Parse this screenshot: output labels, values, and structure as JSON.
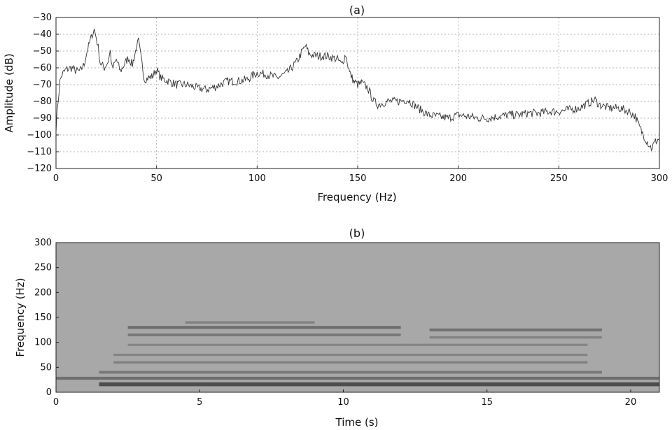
{
  "chart_data": [
    {
      "type": "line",
      "title": "(a)",
      "xlabel": "Frequency (Hz)",
      "ylabel": "Amplitude (dB)",
      "xlim": [
        0,
        300
      ],
      "ylim": [
        -120,
        -30
      ],
      "xticks": [
        0,
        50,
        100,
        150,
        200,
        250,
        300
      ],
      "yticks": [
        -30,
        -40,
        -50,
        -60,
        -70,
        -80,
        -90,
        -100,
        -110,
        -120
      ],
      "grid": true,
      "line_color": "#333333",
      "series": [
        {
          "x": [
            0,
            1,
            2,
            3,
            5,
            8,
            10,
            12,
            14,
            15,
            17,
            18,
            19,
            20,
            21,
            22,
            24,
            26,
            27,
            28,
            30,
            32,
            34,
            36,
            38,
            40,
            41,
            42,
            44,
            46,
            48,
            50,
            52,
            54,
            56,
            58,
            60,
            65,
            70,
            75,
            80,
            85,
            90,
            95,
            100,
            105,
            110,
            115,
            120,
            122,
            124,
            126,
            130,
            135,
            140,
            142,
            144,
            146,
            148,
            150,
            152,
            155,
            158,
            160,
            165,
            170,
            175,
            180,
            185,
            190,
            195,
            200,
            205,
            210,
            215,
            220,
            225,
            230,
            235,
            240,
            245,
            250,
            255,
            260,
            265,
            268,
            270,
            275,
            280,
            285,
            288,
            290,
            292,
            294,
            296,
            298,
            300
          ],
          "y": [
            -96,
            -80,
            -68,
            -64,
            -61,
            -60,
            -62,
            -62,
            -58,
            -52,
            -44,
            -40,
            -37,
            -42,
            -48,
            -57,
            -60,
            -56,
            -50,
            -61,
            -55,
            -62,
            -58,
            -54,
            -58,
            -48,
            -44,
            -52,
            -67,
            -66,
            -65,
            -61,
            -66,
            -67,
            -68,
            -69,
            -70,
            -70,
            -72,
            -73,
            -71,
            -68,
            -68,
            -67,
            -63,
            -64,
            -66,
            -63,
            -56,
            -51,
            -47,
            -52,
            -53,
            -53,
            -55,
            -58,
            -52,
            -63,
            -68,
            -70,
            -69,
            -72,
            -80,
            -82,
            -80,
            -80,
            -79,
            -84,
            -88,
            -89,
            -90,
            -88,
            -89,
            -90,
            -90,
            -89,
            -88,
            -88,
            -87,
            -87,
            -86,
            -86,
            -85,
            -84,
            -81,
            -79,
            -82,
            -84,
            -84,
            -86,
            -89,
            -95,
            -100,
            -104,
            -108,
            -104,
            -102
          ]
        }
      ]
    },
    {
      "type": "heatmap",
      "title": "(b)",
      "xlabel": "Time (s)",
      "ylabel": "Frequency (Hz)",
      "xlim": [
        0,
        21
      ],
      "ylim": [
        0,
        300
      ],
      "xticks": [
        0,
        5,
        10,
        15,
        20
      ],
      "yticks": [
        0,
        50,
        100,
        150,
        200,
        250,
        300
      ],
      "colormap": "gray",
      "background_color": "#a8a8a8",
      "bands": [
        {
          "freq": 16,
          "t_start": 1.5,
          "t_end": 21,
          "intensity": 0.9
        },
        {
          "freq": 28,
          "t_start": 0,
          "t_end": 21,
          "intensity": 0.55
        },
        {
          "freq": 40,
          "t_start": 1.5,
          "t_end": 19,
          "intensity": 0.45
        },
        {
          "freq": 60,
          "t_start": 2,
          "t_end": 18.5,
          "intensity": 0.35
        },
        {
          "freq": 75,
          "t_start": 2,
          "t_end": 18.5,
          "intensity": 0.3
        },
        {
          "freq": 95,
          "t_start": 2.5,
          "t_end": 18.5,
          "intensity": 0.3
        },
        {
          "freq": 115,
          "t_start": 2.5,
          "t_end": 12,
          "intensity": 0.45
        },
        {
          "freq": 130,
          "t_start": 2.5,
          "t_end": 12,
          "intensity": 0.55
        },
        {
          "freq": 140,
          "t_start": 4.5,
          "t_end": 9,
          "intensity": 0.35
        },
        {
          "freq": 125,
          "t_start": 13,
          "t_end": 19,
          "intensity": 0.5
        },
        {
          "freq": 110,
          "t_start": 13,
          "t_end": 19,
          "intensity": 0.35
        }
      ]
    }
  ]
}
